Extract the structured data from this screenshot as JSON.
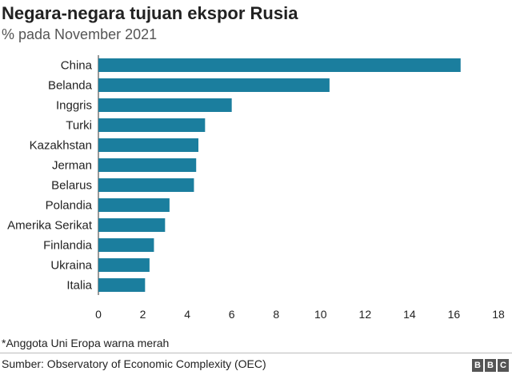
{
  "chart_data": {
    "type": "bar",
    "orientation": "horizontal",
    "title": "Negara-negara tujuan ekspor Rusia",
    "subtitle": "% pada November 2021",
    "categories": [
      "China",
      "Belanda",
      "Inggris",
      "Turki",
      "Kazakhstan",
      "Jerman",
      "Belarus",
      "Polandia",
      "Amerika Serikat",
      "Finlandia",
      "Ukraina",
      "Italia"
    ],
    "values": [
      16.3,
      10.4,
      6.0,
      4.8,
      4.5,
      4.4,
      4.3,
      3.2,
      3.0,
      2.5,
      2.3,
      2.1
    ],
    "xlim": [
      0,
      18
    ],
    "xticks": [
      0,
      2,
      4,
      6,
      8,
      10,
      12,
      14,
      16,
      18
    ],
    "xlabel": "",
    "ylabel": "",
    "grid": false,
    "bar_color": "#1b7e9e"
  },
  "footnote": "*Anggota Uni Eropa warna merah",
  "source": "Sumber: Observatory of Economic Complexity (OEC)",
  "logo": [
    "B",
    "B",
    "C"
  ]
}
